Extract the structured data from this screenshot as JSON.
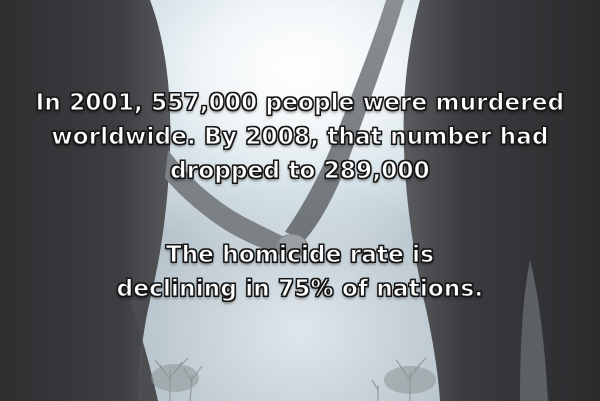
{
  "caption": {
    "main_lines": [
      "In 2001, 557,000 people were murdered",
      "worldwide. By 2008, that number had",
      "dropped to 289,000"
    ],
    "sub_lines": [
      "The homicide rate is",
      "declining in 75% of nations."
    ]
  },
  "colors": {
    "text": "#ffffff",
    "outline": "#1a1a1a",
    "silhouette": "#3a3a3c"
  }
}
